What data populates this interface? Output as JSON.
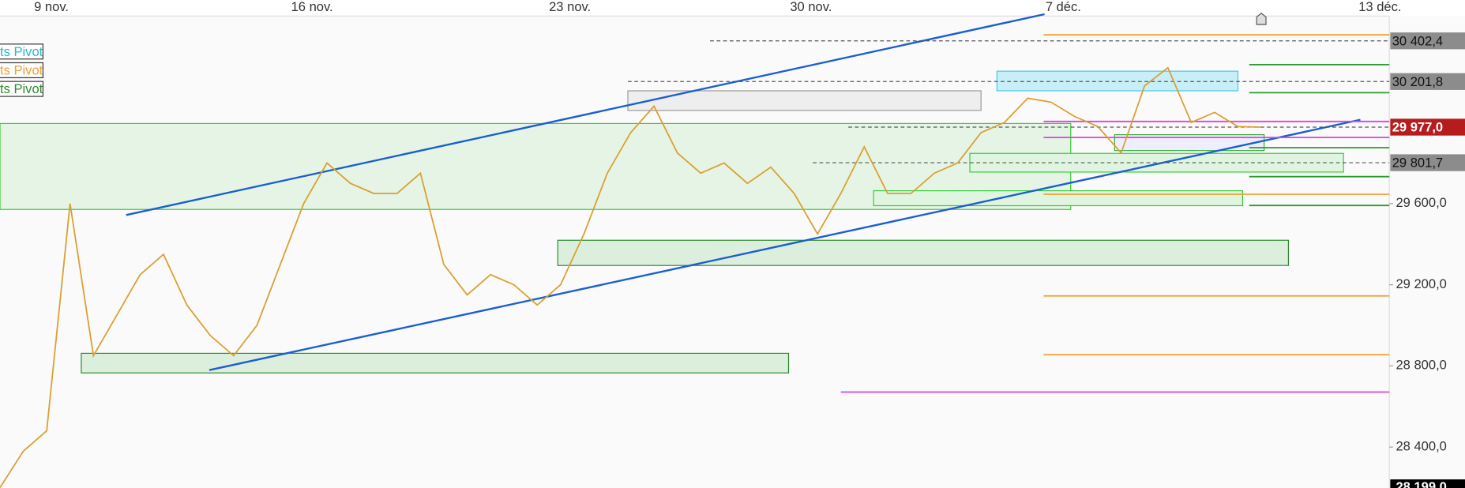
{
  "chart_data": {
    "type": "line",
    "x_labels": [
      "9 nov.",
      "16 nov.",
      "23 nov.",
      "30 nov.",
      "7 déc.",
      "13 déc."
    ],
    "series": [
      {
        "color": "#d9a032",
        "values": [
          28200,
          28380,
          28480,
          29600,
          28850,
          29050,
          29250,
          29350,
          29100,
          28950,
          28850,
          29000,
          29300,
          29600,
          29800,
          29700,
          29650,
          29650,
          29750,
          29300,
          29150,
          29250,
          29200,
          29100,
          29200,
          29450,
          29750,
          29950,
          30080,
          29850,
          29750,
          29800,
          29700,
          29780,
          29650,
          29450,
          29650,
          29880,
          29650,
          29650,
          29750,
          29800,
          29950,
          30000,
          30120,
          30100,
          30030,
          29980,
          29850,
          30180,
          30270,
          30000,
          30050,
          29980,
          29977
        ]
      }
    ],
    "ylim": [
      28199,
      30520
    ],
    "yticks": [
      {
        "value": 28400,
        "label": "28 400,0"
      },
      {
        "value": 28800,
        "label": "28 800,0"
      },
      {
        "value": 29200,
        "label": "29 200,0"
      },
      {
        "value": 29600,
        "label": "29 600,0"
      }
    ],
    "price_labels": [
      {
        "value": 30402.4,
        "label": "30 402,4",
        "color": "#8c8c8c"
      },
      {
        "value": 30201.8,
        "label": "30 201,8",
        "color": "#8c8c8c"
      },
      {
        "value": 29977,
        "label": "29 977,0",
        "color": "#b71c1c"
      },
      {
        "value": 29801.7,
        "label": "29 801,7",
        "color": "#8c8c8c"
      }
    ],
    "bottom_label": {
      "value": 28199,
      "label": "28 199,0"
    },
    "pivot_levels": [
      {
        "value": 30432,
        "color": "#f0a030"
      },
      {
        "value": 29646,
        "color": "#f0a030"
      },
      {
        "value": 29145,
        "color": "#f0a030"
      },
      {
        "value": 28855,
        "color": "#f0a030"
      },
      {
        "value": 30285,
        "color": "#2e9a2e"
      },
      {
        "value": 30147,
        "color": "#2e9a2e"
      },
      {
        "value": 29876,
        "color": "#2e9a2e"
      },
      {
        "value": 29733,
        "color": "#2e9a2e"
      },
      {
        "value": 29591,
        "color": "#2e9a2e"
      },
      {
        "value": 30005,
        "color": "#e040e0"
      },
      {
        "value": 29926,
        "color": "#e040e0"
      },
      {
        "value": 28671,
        "color": "#e040e0"
      }
    ],
    "legend": [
      {
        "label": "ts Pivot",
        "color": "#29b6d8"
      },
      {
        "label": "ts Pivot",
        "color": "#f0a030"
      },
      {
        "label": "ts Pivot",
        "color": "#2e8b2e"
      }
    ]
  }
}
